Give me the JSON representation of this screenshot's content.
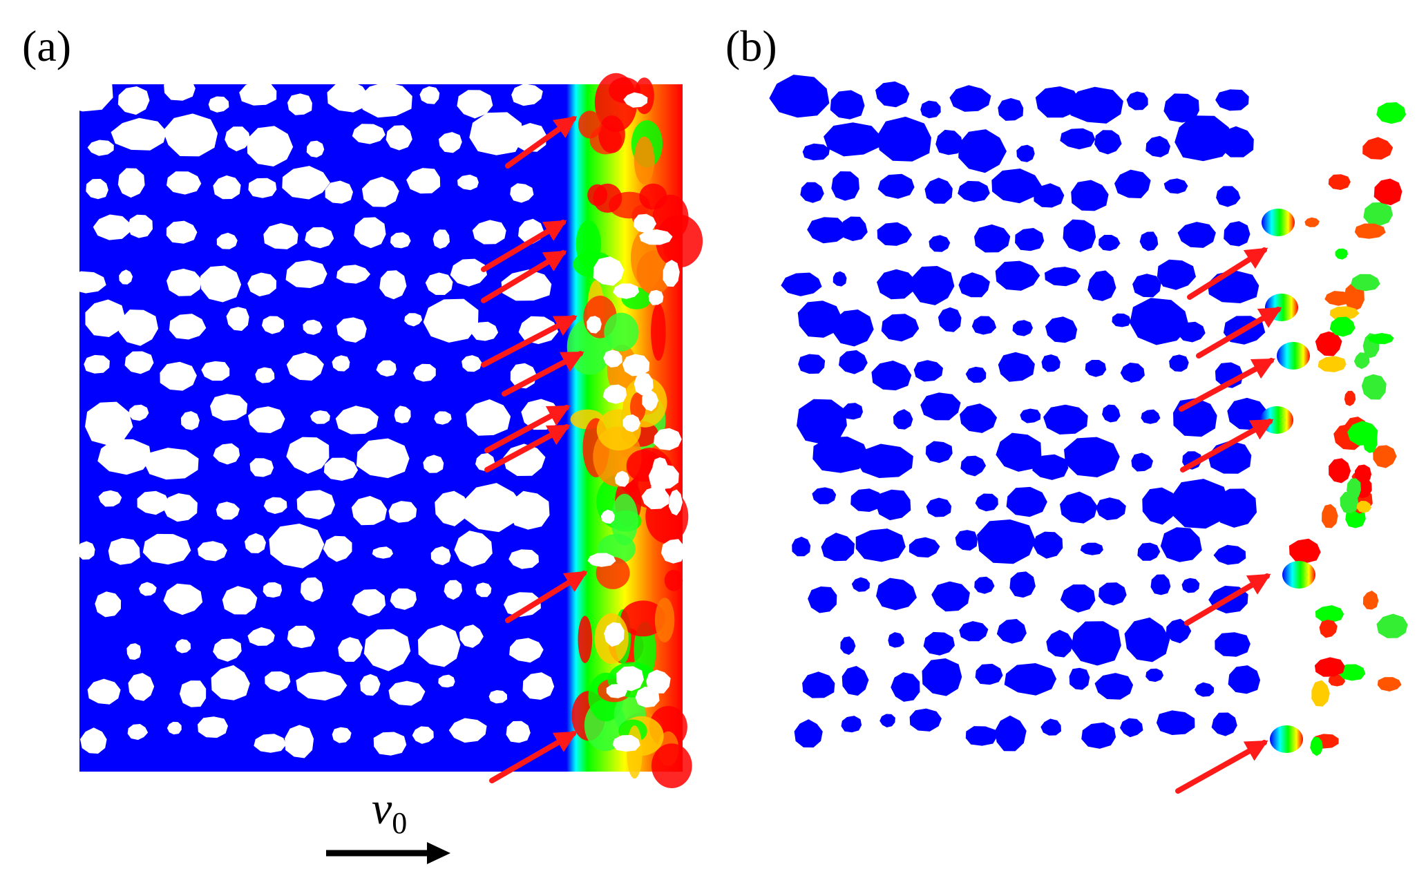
{
  "panels": [
    {
      "label": "(a)"
    },
    {
      "label": "(b)"
    }
  ],
  "velocity": {
    "symbol": "v",
    "subscript": "0"
  },
  "colors": {
    "matrix_blue": "#0000ff",
    "particle_white": "#ffffff",
    "contour_green": "#00ff00",
    "contour_yellow": "#ffff00",
    "contour_red": "#ff0000",
    "contour_cyan": "#00ffff",
    "arrow_red": "#ff1a1a",
    "velocity_arrow": "#000000"
  },
  "icons": {
    "indicator_arrow": "red-arrow",
    "velocity_arrow": "black-right-arrow"
  }
}
